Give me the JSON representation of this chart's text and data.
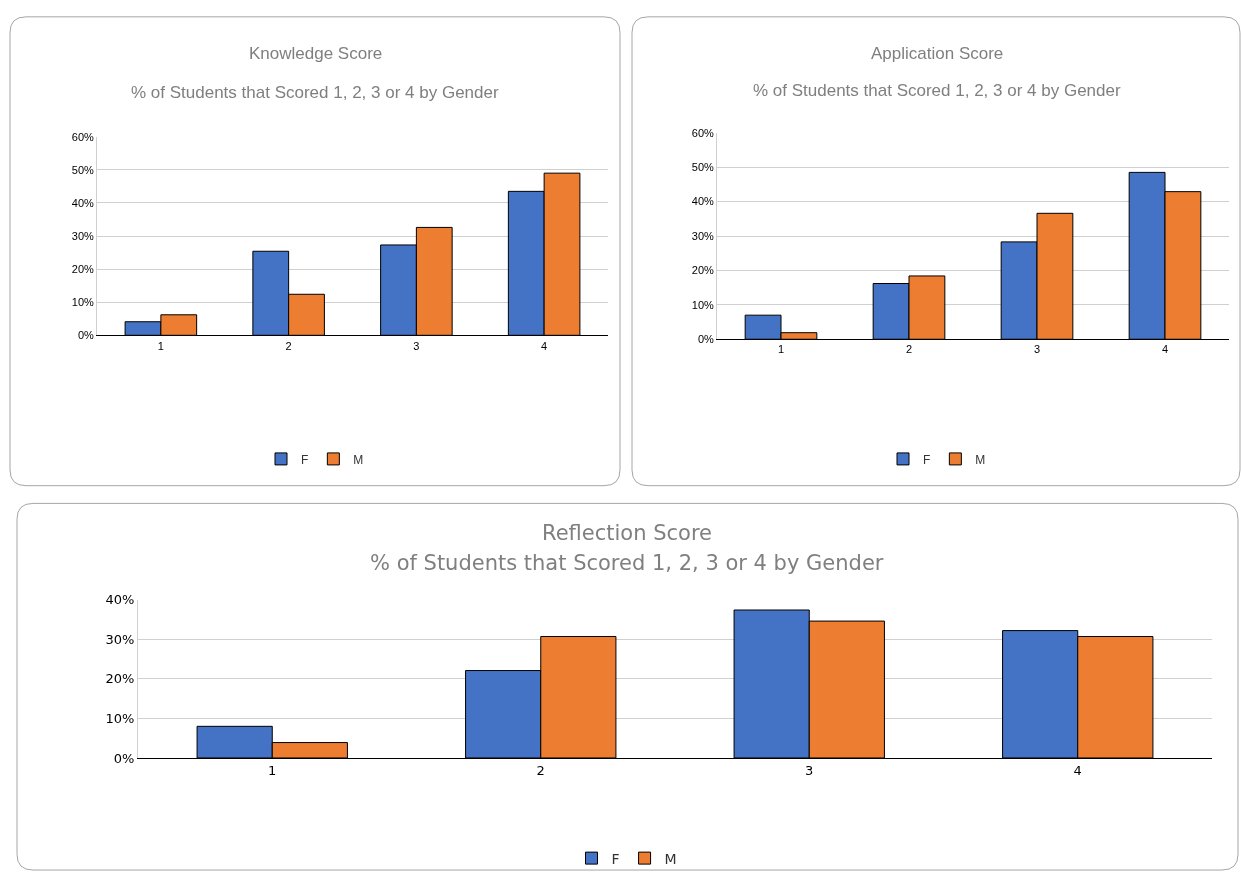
{
  "chart_data": [
    {
      "type": "bar",
      "title": "Knowledge Score",
      "subtitle": "% of Students that Scored 1, 2, 3 or 4 by Gender",
      "categories": [
        "1",
        "2",
        "3",
        "4"
      ],
      "series": [
        {
          "name": "F",
          "color": "#4472c4",
          "values": [
            4.1,
            25.4,
            27.3,
            43.5
          ]
        },
        {
          "name": "M",
          "color": "#ed7d31",
          "values": [
            6.2,
            12.4,
            32.6,
            49.0
          ]
        }
      ],
      "ylim": [
        0,
        60
      ],
      "yticks": [
        {
          "value": 0,
          "label": "0%"
        },
        {
          "value": 10,
          "label": "10%"
        },
        {
          "value": 20,
          "label": "20%"
        },
        {
          "value": 30,
          "label": "30%"
        },
        {
          "value": 40,
          "label": "40%"
        },
        {
          "value": 50,
          "label": "50%"
        },
        {
          "value": 60,
          "label": "60%"
        }
      ],
      "grid": "y",
      "legend": "bottom"
    },
    {
      "type": "bar",
      "title": "Application Score",
      "subtitle": "% of Students that Scored 1, 2, 3 or 4 by Gender",
      "categories": [
        "1",
        "2",
        "3",
        "4"
      ],
      "series": [
        {
          "name": "F",
          "color": "#4472c4",
          "values": [
            7.0,
            16.2,
            28.3,
            48.5
          ]
        },
        {
          "name": "M",
          "color": "#ed7d31",
          "values": [
            1.9,
            18.4,
            36.6,
            42.9
          ]
        }
      ],
      "ylim": [
        0,
        60
      ],
      "yticks": [
        {
          "value": 0,
          "label": "0%"
        },
        {
          "value": 10,
          "label": "10%"
        },
        {
          "value": 20,
          "label": "20%"
        },
        {
          "value": 30,
          "label": "30%"
        },
        {
          "value": 40,
          "label": "40%"
        },
        {
          "value": 50,
          "label": "50%"
        },
        {
          "value": 60,
          "label": "60%"
        }
      ],
      "grid": "y",
      "legend": "bottom"
    },
    {
      "type": "bar",
      "title": "Reflection Score",
      "subtitle": "% of Students that Scored 1, 2, 3 or 4 by Gender",
      "categories": [
        "1",
        "2",
        "3",
        "4"
      ],
      "series": [
        {
          "name": "F",
          "color": "#4472c4",
          "values": [
            8.0,
            22.1,
            37.4,
            32.2
          ]
        },
        {
          "name": "M",
          "color": "#ed7d31",
          "values": [
            3.9,
            30.7,
            34.6,
            30.7
          ]
        }
      ],
      "ylim": [
        0,
        40
      ],
      "yticks": [
        {
          "value": 0,
          "label": "0%"
        },
        {
          "value": 10,
          "label": "10%"
        },
        {
          "value": 20,
          "label": "20%"
        },
        {
          "value": 30,
          "label": "30%"
        },
        {
          "value": 40,
          "label": "40%"
        }
      ],
      "grid": "y",
      "legend": "bottom"
    }
  ]
}
